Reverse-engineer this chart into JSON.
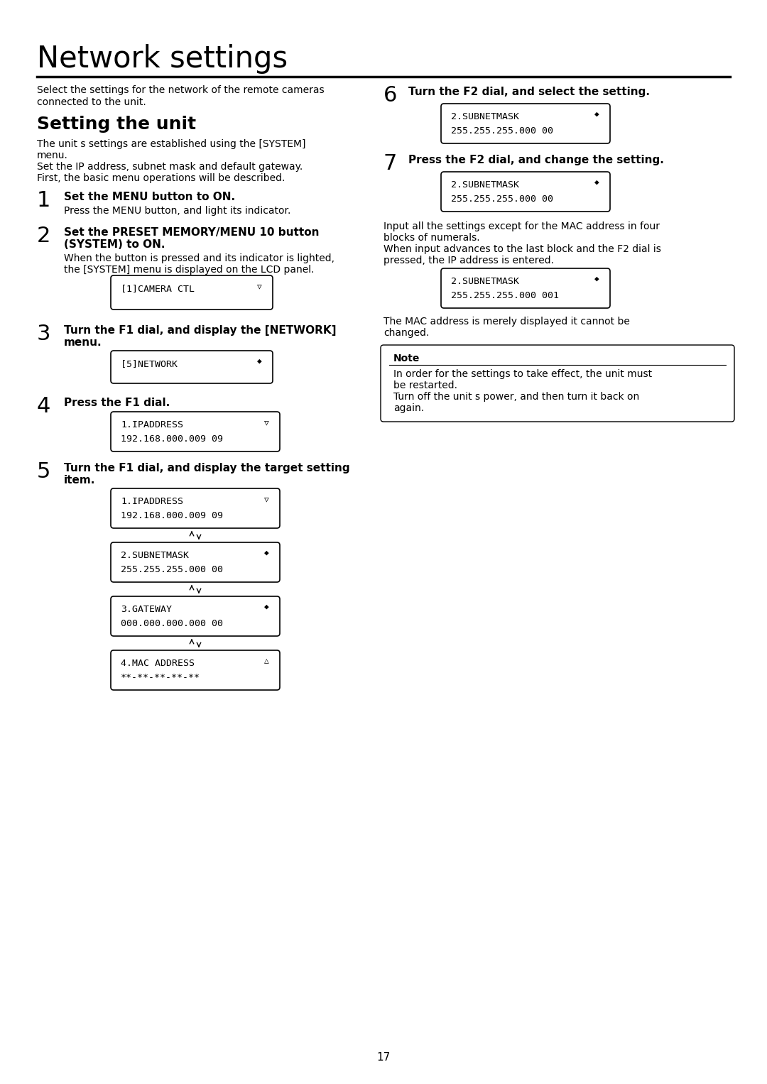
{
  "bg_color": "#ffffff",
  "text_color": "#000000",
  "page_title": "Network settings",
  "page_number": "17",
  "intro_text1": "Select the settings for the network of the remote cameras",
  "intro_text2": "connected to the unit.",
  "section_title": "Setting the unit",
  "section_body": [
    "The unit s settings are established using the [SYSTEM]",
    "menu.",
    "Set the IP address, subnet mask and default gateway.",
    "First, the basic menu operations will be described."
  ],
  "step1_title": "Set the MENU button to ON.",
  "step1_body": "Press the MENU button, and light its indicator.",
  "step2_title1": "Set the PRESET MEMORY/MENU 10 button",
  "step2_title2": "(SYSTEM) to ON.",
  "step2_body1": "When the button is pressed and its indicator is lighted,",
  "step2_body2": "the [SYSTEM] menu is displayed on the LCD panel.",
  "box2_l1": "[1]CAMERA CTL",
  "box2_l2": "",
  "box2_arr": "▽",
  "step3_title1": "Turn the F1 dial, and display the [NETWORK]",
  "step3_title2": "menu.",
  "box3_l1": "[5]NETWORK",
  "box3_l2": "",
  "box3_arr": "◆",
  "step4_title": "Press the F1 dial.",
  "box4_l1": "1.IPADDRESS",
  "box4_l2": "192.168.000.009 09",
  "box4_arr": "▽",
  "step5_title1": "Turn the F1 dial, and display the target setting",
  "step5_title2": "item.",
  "boxes5": [
    {
      "l1": "1.IPADDRESS",
      "l2": "192.168.000.009 09",
      "arr": "▽"
    },
    {
      "l1": "2.SUBNETMASK",
      "l2": "255.255.255.000 00",
      "arr": "◆"
    },
    {
      "l1": "3.GATEWAY",
      "l2": "000.000.000.000 00",
      "arr": "◆"
    },
    {
      "l1": "4.MAC ADDRESS",
      "l2": "**-**-**-**-**",
      "arr": "△"
    }
  ],
  "step6_title": "Turn the F2 dial, and select the setting.",
  "box6_l1": "2.SUBNETMASK",
  "box6_l2": "255.255.255.000 00",
  "box6_arr": "◆",
  "step7_title": "Press the F2 dial, and change the setting.",
  "box7_l1": "2.SUBNETMASK",
  "box7_l2": "255.255.255.000 00",
  "box7_arr": "◆",
  "right_body": [
    "Input all the settings except for the MAC address in four",
    "blocks of numerals.",
    "When input advances to the last block and the F2 dial is",
    "pressed, the IP address is entered."
  ],
  "boxE_l1": "2.SUBNETMASK",
  "boxE_l2": "255.255.255.000 001",
  "boxE_arr": "◆",
  "right_body2": [
    "The MAC address is merely displayed it cannot be",
    "changed."
  ],
  "note_title": "Note",
  "note_body": [
    "In order for the settings to take effect, the unit must",
    "be restarted.",
    "Turn off the unit s power, and then turn it back on",
    "again."
  ]
}
